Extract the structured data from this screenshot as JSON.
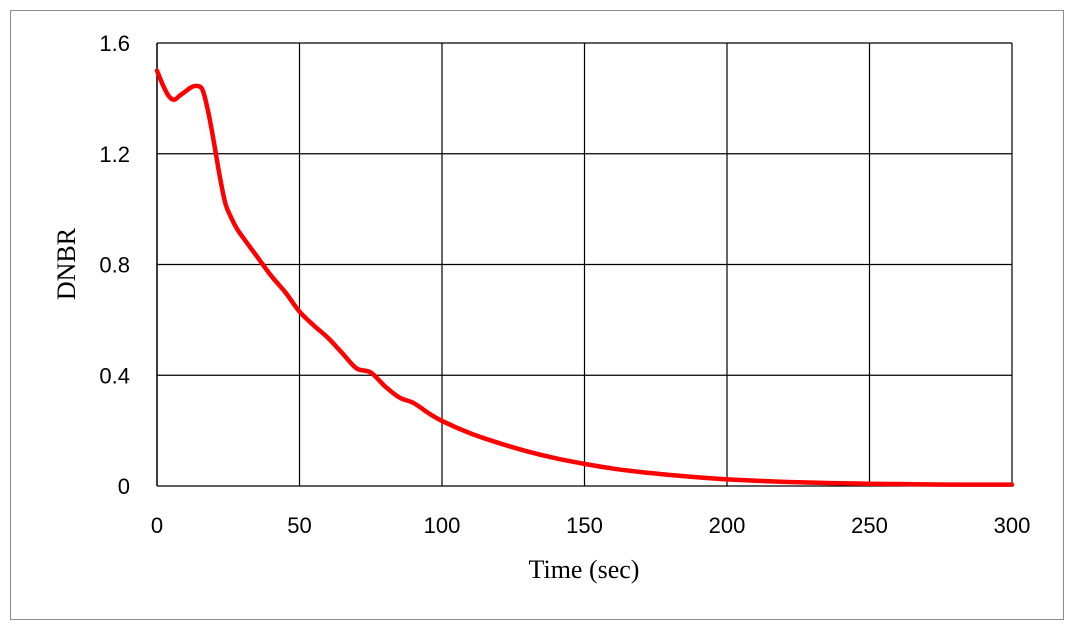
{
  "chart_data": {
    "type": "line",
    "title": "",
    "xlabel": "Time (sec)",
    "ylabel": "DNBR",
    "xlim": [
      0,
      300
    ],
    "ylim": [
      0,
      1.6
    ],
    "xticks": [
      0,
      50,
      100,
      150,
      200,
      250,
      300
    ],
    "yticks": [
      0,
      0.4,
      0.8,
      1.2,
      1.6
    ],
    "xtick_labels": [
      "0",
      "50",
      "100",
      "150",
      "200",
      "250",
      "300"
    ],
    "ytick_labels": [
      "0",
      "0.4",
      "0.8",
      "1.2",
      "1.6"
    ],
    "grid": true,
    "legend": "none",
    "series": [
      {
        "color": "#ff0000",
        "x": [
          0,
          2,
          4,
          6,
          8,
          10,
          12,
          14,
          16,
          18,
          20,
          22,
          24,
          26,
          28,
          30,
          35,
          40,
          45,
          50,
          55,
          60,
          65,
          70,
          75,
          80,
          85,
          90,
          95,
          100,
          110,
          120,
          130,
          140,
          150,
          160,
          170,
          180,
          190,
          200,
          210,
          220,
          230,
          240,
          250,
          260,
          270,
          280,
          290,
          300
        ],
        "y": [
          1.5,
          1.45,
          1.41,
          1.395,
          1.41,
          1.425,
          1.44,
          1.445,
          1.43,
          1.35,
          1.24,
          1.12,
          1.02,
          0.97,
          0.93,
          0.9,
          0.83,
          0.76,
          0.7,
          0.63,
          0.58,
          0.535,
          0.48,
          0.425,
          0.41,
          0.36,
          0.32,
          0.3,
          0.265,
          0.235,
          0.19,
          0.155,
          0.125,
          0.1,
          0.08,
          0.063,
          0.05,
          0.04,
          0.031,
          0.024,
          0.019,
          0.015,
          0.012,
          0.01,
          0.008,
          0.007,
          0.006,
          0.005,
          0.005,
          0.005
        ]
      }
    ]
  }
}
